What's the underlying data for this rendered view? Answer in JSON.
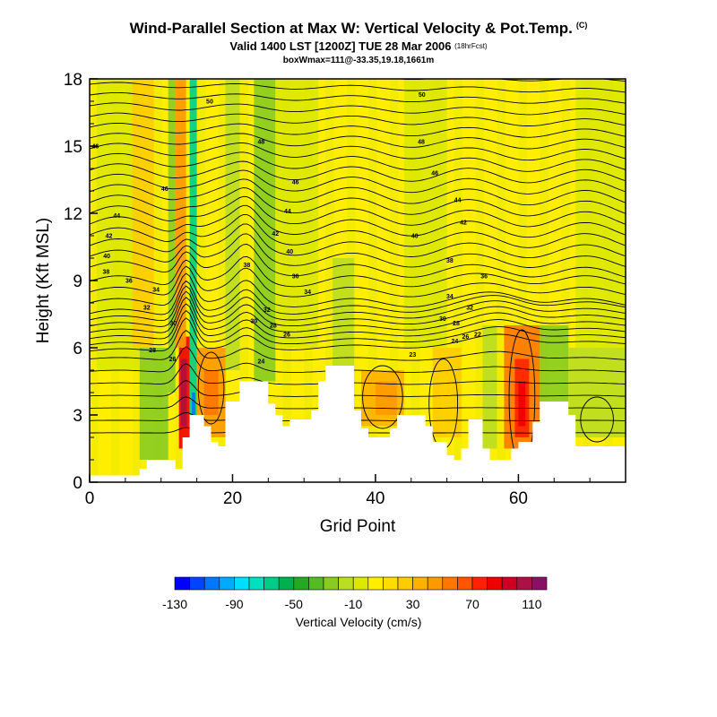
{
  "header": {
    "title": "Wind-Parallel Section at Max W: Vertical Velocity & Pot.Temp.",
    "copyright": "(C)",
    "valid": "Valid 1400 LST [1200Z] TUE 28 Mar 2006",
    "forecast": "(18hrFcst)",
    "box_info": "boxWmax=111@-33.35,19.18,1661m"
  },
  "chart_data": {
    "type": "heatmap",
    "xlabel": "Grid Point",
    "ylabel": "Height (Kft MSL)",
    "xlim": [
      0,
      75
    ],
    "ylim": [
      0,
      18
    ],
    "xticks": [
      0,
      20,
      40,
      60
    ],
    "yticks": [
      0,
      3,
      6,
      9,
      12,
      15,
      18
    ],
    "colorbar": {
      "label": "Vertical Velocity (cm/s)",
      "tick_labels": [
        "-130",
        "-90",
        "-50",
        "-10",
        "30",
        "70",
        "110"
      ],
      "tick_values": [
        -130,
        -90,
        -50,
        -10,
        30,
        70,
        110
      ],
      "range": [
        -130,
        120
      ],
      "colors": [
        "#0000ff",
        "#0044ff",
        "#0077ff",
        "#00aaff",
        "#00ddff",
        "#00e0c0",
        "#00cc88",
        "#00b050",
        "#22aa22",
        "#55bb22",
        "#88cc22",
        "#bbdd22",
        "#dde800",
        "#ffee00",
        "#ffdd00",
        "#ffcc00",
        "#ffb000",
        "#ff9900",
        "#ff7700",
        "#ff5500",
        "#ff2200",
        "#ee0000",
        "#cc0022",
        "#aa1144",
        "#881166"
      ]
    },
    "terrain": [
      [
        0,
        0.3
      ],
      [
        7,
        0.3
      ],
      [
        7,
        0.6
      ],
      [
        8,
        0.6
      ],
      [
        8,
        1.0
      ],
      [
        12,
        1.0
      ],
      [
        12,
        0.6
      ],
      [
        13,
        0.6
      ],
      [
        13,
        2.0
      ],
      [
        14,
        2.0
      ],
      [
        14,
        3.0
      ],
      [
        16,
        3.0
      ],
      [
        16,
        2.5
      ],
      [
        17,
        2.5
      ],
      [
        17,
        1.8
      ],
      [
        18,
        1.8
      ],
      [
        18,
        1.6
      ],
      [
        19,
        1.6
      ],
      [
        19,
        3.6
      ],
      [
        21,
        3.6
      ],
      [
        21,
        4.5
      ],
      [
        25,
        4.5
      ],
      [
        25,
        3.5
      ],
      [
        26,
        3.5
      ],
      [
        26,
        3.0
      ],
      [
        27,
        3.0
      ],
      [
        27,
        2.5
      ],
      [
        28,
        2.5
      ],
      [
        28,
        2.8
      ],
      [
        31,
        2.8
      ],
      [
        31,
        3.2
      ],
      [
        32,
        3.2
      ],
      [
        32,
        4.5
      ],
      [
        33,
        4.5
      ],
      [
        33,
        5.2
      ],
      [
        37,
        5.2
      ],
      [
        37,
        3.2
      ],
      [
        38,
        3.2
      ],
      [
        38,
        2.4
      ],
      [
        39,
        2.4
      ],
      [
        39,
        2.0
      ],
      [
        42,
        2.0
      ],
      [
        42,
        2.4
      ],
      [
        43,
        2.4
      ],
      [
        43,
        3.0
      ],
      [
        47,
        3.0
      ],
      [
        47,
        2.5
      ],
      [
        48,
        2.5
      ],
      [
        48,
        1.8
      ],
      [
        50,
        1.8
      ],
      [
        50,
        1.2
      ],
      [
        51,
        1.2
      ],
      [
        51,
        1.0
      ],
      [
        52,
        1.0
      ],
      [
        52,
        1.5
      ],
      [
        53,
        1.5
      ],
      [
        53,
        2.8
      ],
      [
        55,
        2.8
      ],
      [
        55,
        1.5
      ],
      [
        56,
        1.5
      ],
      [
        56,
        1.0
      ],
      [
        59,
        1.0
      ],
      [
        59,
        1.5
      ],
      [
        60,
        1.5
      ],
      [
        60,
        1.8
      ],
      [
        62,
        1.8
      ],
      [
        62,
        2.7
      ],
      [
        63,
        2.7
      ],
      [
        63,
        3.6
      ],
      [
        67,
        3.6
      ],
      [
        67,
        3.0
      ],
      [
        68,
        3.0
      ],
      [
        68,
        1.6
      ],
      [
        75,
        1.6
      ]
    ],
    "velocity_cells": [
      {
        "x0": 12.5,
        "x1": 14,
        "y0": 1.5,
        "y1": 6.5,
        "v": 80
      },
      {
        "x0": 12.8,
        "x1": 13.6,
        "y0": 2.5,
        "y1": 5.5,
        "v": 100
      },
      {
        "x0": 12,
        "x1": 13.5,
        "y0": 6,
        "y1": 18,
        "v": 45
      },
      {
        "x0": 14,
        "x1": 15,
        "y0": 2,
        "y1": 18,
        "v": -70
      },
      {
        "x0": 14.3,
        "x1": 14.8,
        "y0": 2.2,
        "y1": 4,
        "v": -110
      },
      {
        "x0": 11,
        "x1": 12,
        "y0": 4,
        "y1": 18,
        "v": -30
      },
      {
        "x0": 15,
        "x1": 19,
        "y0": 2,
        "y1": 6,
        "v": 40
      },
      {
        "x0": 16,
        "x1": 18,
        "y0": 3,
        "y1": 5,
        "v": 55
      },
      {
        "x0": 7,
        "x1": 11,
        "y0": 1,
        "y1": 6,
        "v": -25
      },
      {
        "x0": 23,
        "x1": 26,
        "y0": 4.5,
        "y1": 18,
        "v": -25
      },
      {
        "x0": 19,
        "x1": 21,
        "y0": 5,
        "y1": 18,
        "v": -15
      },
      {
        "x0": 1,
        "x1": 7,
        "y0": 5,
        "y1": 18,
        "v": -5
      },
      {
        "x0": 6,
        "x1": 9,
        "y0": 6,
        "y1": 18,
        "v": 20
      },
      {
        "x0": 38,
        "x1": 44,
        "y0": 2.5,
        "y1": 5,
        "v": 30
      },
      {
        "x0": 40,
        "x1": 43,
        "y0": 3,
        "y1": 4.5,
        "v": 40
      },
      {
        "x0": 34,
        "x1": 37,
        "y0": 5.2,
        "y1": 10,
        "v": -15
      },
      {
        "x0": 48,
        "x1": 52,
        "y0": 2,
        "y1": 6,
        "v": 25
      },
      {
        "x0": 58,
        "x1": 63,
        "y0": 1.5,
        "y1": 7,
        "v": 50
      },
      {
        "x0": 59.5,
        "x1": 61.5,
        "y0": 2,
        "y1": 5.5,
        "v": 75
      },
      {
        "x0": 60,
        "x1": 61,
        "y0": 2.5,
        "y1": 4.5,
        "v": 85
      },
      {
        "x0": 55,
        "x1": 57,
        "y0": 1.5,
        "y1": 7,
        "v": -20
      },
      {
        "x0": 63,
        "x1": 67,
        "y0": 3.6,
        "y1": 7,
        "v": -30
      },
      {
        "x0": 67,
        "x1": 75,
        "y0": 2,
        "y1": 6,
        "v": -15
      },
      {
        "x0": 68,
        "x1": 75,
        "y0": 6,
        "y1": 18,
        "v": -5
      },
      {
        "x0": 44,
        "x1": 50,
        "y0": 6,
        "y1": 18,
        "v": -8
      },
      {
        "x0": 26,
        "x1": 32,
        "y0": 6,
        "y1": 18,
        "v": -10
      }
    ],
    "theta_labels": [
      {
        "x": 0.8,
        "y": 15.0,
        "t": "46"
      },
      {
        "x": 10.5,
        "y": 13.1,
        "t": "46"
      },
      {
        "x": 3.8,
        "y": 11.9,
        "t": "44"
      },
      {
        "x": 2.7,
        "y": 11.0,
        "t": "42"
      },
      {
        "x": 2.4,
        "y": 10.1,
        "t": "40"
      },
      {
        "x": 2.3,
        "y": 9.4,
        "t": "38"
      },
      {
        "x": 5.5,
        "y": 9.0,
        "t": "36"
      },
      {
        "x": 9.3,
        "y": 8.6,
        "t": "34"
      },
      {
        "x": 8.0,
        "y": 7.8,
        "t": "32"
      },
      {
        "x": 11.7,
        "y": 7.1,
        "t": "30"
      },
      {
        "x": 8.8,
        "y": 5.9,
        "t": "28"
      },
      {
        "x": 11.6,
        "y": 5.5,
        "t": "26"
      },
      {
        "x": 16.8,
        "y": 17.0,
        "t": "50"
      },
      {
        "x": 24.0,
        "y": 15.2,
        "t": "48"
      },
      {
        "x": 28.8,
        "y": 13.4,
        "t": "46"
      },
      {
        "x": 27.7,
        "y": 12.1,
        "t": "44"
      },
      {
        "x": 26.0,
        "y": 11.1,
        "t": "42"
      },
      {
        "x": 28.0,
        "y": 10.3,
        "t": "40"
      },
      {
        "x": 22.0,
        "y": 9.7,
        "t": "38"
      },
      {
        "x": 28.8,
        "y": 9.2,
        "t": "36"
      },
      {
        "x": 30.5,
        "y": 8.5,
        "t": "34"
      },
      {
        "x": 24.8,
        "y": 7.7,
        "t": "32"
      },
      {
        "x": 23.0,
        "y": 7.2,
        "t": "30"
      },
      {
        "x": 25.7,
        "y": 7.0,
        "t": "28"
      },
      {
        "x": 27.6,
        "y": 6.6,
        "t": "26"
      },
      {
        "x": 24.0,
        "y": 5.4,
        "t": "24"
      },
      {
        "x": 46.5,
        "y": 17.3,
        "t": "50"
      },
      {
        "x": 46.4,
        "y": 15.2,
        "t": "48"
      },
      {
        "x": 48.3,
        "y": 13.8,
        "t": "46"
      },
      {
        "x": 51.5,
        "y": 12.6,
        "t": "44"
      },
      {
        "x": 52.3,
        "y": 11.6,
        "t": "42"
      },
      {
        "x": 45.5,
        "y": 11.0,
        "t": "40"
      },
      {
        "x": 50.4,
        "y": 9.9,
        "t": "38"
      },
      {
        "x": 55.2,
        "y": 9.2,
        "t": "36"
      },
      {
        "x": 50.4,
        "y": 8.3,
        "t": "34"
      },
      {
        "x": 53.2,
        "y": 7.8,
        "t": "32"
      },
      {
        "x": 49.4,
        "y": 7.3,
        "t": "30"
      },
      {
        "x": 51.3,
        "y": 7.1,
        "t": "28"
      },
      {
        "x": 52.6,
        "y": 6.5,
        "t": "26"
      },
      {
        "x": 51.1,
        "y": 6.3,
        "t": "24"
      },
      {
        "x": 54.3,
        "y": 6.6,
        "t": "22"
      },
      {
        "x": 45.2,
        "y": 5.7,
        "t": "23"
      }
    ]
  }
}
